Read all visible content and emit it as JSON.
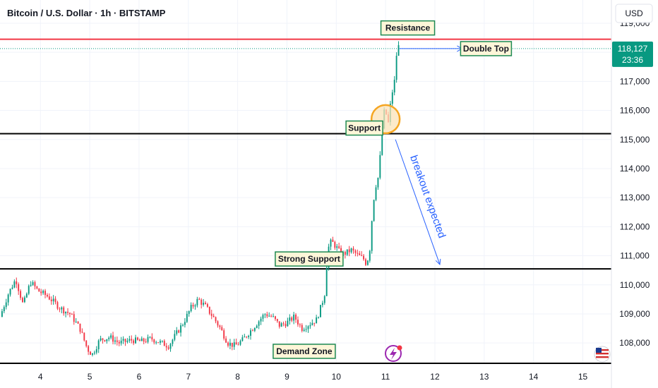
{
  "chart_data": {
    "type": "candlestick",
    "title": "Bitcoin / U.S. Dollar · 1h · BITSTAMP",
    "currency": "USD",
    "x_ticks": [
      4,
      5,
      6,
      7,
      8,
      9,
      10,
      11,
      12,
      13,
      14,
      15
    ],
    "xlim": [
      3.18,
      15.58
    ],
    "y_ticks": [
      "108,000",
      "109,000",
      "110,000",
      "111,000",
      "112,000",
      "113,000",
      "114,000",
      "115,000",
      "116,000",
      "117,000",
      "118,000",
      "119,000"
    ],
    "ylim": [
      107300,
      119800
    ],
    "last_price": {
      "value": 118127,
      "label": "118,127",
      "countdown": "23:36"
    },
    "levels": [
      {
        "name": "Resistance",
        "value": 118450,
        "color": "#f23645"
      },
      {
        "name": "Support",
        "value": 115200,
        "color": "#000000"
      },
      {
        "name": "Strong Support",
        "value": 110550,
        "color": "#000000"
      },
      {
        "name": "Demand Zone",
        "value": 107300,
        "color": "#000000"
      }
    ],
    "annotations": {
      "resistance": "Resistance",
      "double_top": "Double Top",
      "support": "Support",
      "strong_support": "Strong Support",
      "demand_zone": "Demand Zone",
      "breakout": "breakout expected"
    },
    "colors": {
      "up": "#089981",
      "down": "#f23645",
      "accent": "#2962ff",
      "circle": "#f5a623",
      "circle_fill": "#fbe3b8",
      "box_border": "#1e8a52",
      "box_fill": "#fdf6d8"
    },
    "anchors": [
      [
        3.18,
        108900
      ],
      [
        3.35,
        109700
      ],
      [
        3.5,
        110200
      ],
      [
        3.65,
        109300
      ],
      [
        3.8,
        110100
      ],
      [
        3.95,
        109800
      ],
      [
        4.15,
        109600
      ],
      [
        4.4,
        109200
      ],
      [
        4.6,
        109000
      ],
      [
        4.8,
        108500
      ],
      [
        4.95,
        107800
      ],
      [
        5.05,
        107600
      ],
      [
        5.2,
        108100
      ],
      [
        5.4,
        108200
      ],
      [
        5.6,
        108000
      ],
      [
        5.85,
        108100
      ],
      [
        6.05,
        108050
      ],
      [
        6.25,
        108150
      ],
      [
        6.45,
        108000
      ],
      [
        6.6,
        107900
      ],
      [
        6.75,
        108300
      ],
      [
        6.9,
        108700
      ],
      [
        7.05,
        109200
      ],
      [
        7.2,
        109500
      ],
      [
        7.35,
        109250
      ],
      [
        7.5,
        108900
      ],
      [
        7.65,
        108500
      ],
      [
        7.8,
        108000
      ],
      [
        7.95,
        107900
      ],
      [
        8.1,
        108100
      ],
      [
        8.25,
        108400
      ],
      [
        8.4,
        108700
      ],
      [
        8.55,
        109000
      ],
      [
        8.7,
        108900
      ],
      [
        8.85,
        108600
      ],
      [
        9.0,
        108700
      ],
      [
        9.15,
        108900
      ],
      [
        9.3,
        108500
      ],
      [
        9.45,
        108650
      ],
      [
        9.6,
        108800
      ],
      [
        9.7,
        109300
      ],
      [
        9.78,
        109800
      ],
      [
        9.82,
        111200
      ],
      [
        9.9,
        111500
      ],
      [
        10.0,
        111300
      ],
      [
        10.1,
        111050
      ],
      [
        10.2,
        111100
      ],
      [
        10.3,
        111200
      ],
      [
        10.45,
        111000
      ],
      [
        10.55,
        110900
      ],
      [
        10.6,
        110750
      ],
      [
        10.67,
        111000
      ],
      [
        10.72,
        112200
      ],
      [
        10.78,
        113300
      ],
      [
        10.85,
        113700
      ],
      [
        10.9,
        114600
      ],
      [
        10.95,
        115900
      ],
      [
        11.0,
        116000
      ],
      [
        11.05,
        115500
      ],
      [
        11.12,
        116500
      ],
      [
        11.18,
        117000
      ],
      [
        11.24,
        118300
      ],
      [
        11.28,
        118127
      ]
    ]
  }
}
